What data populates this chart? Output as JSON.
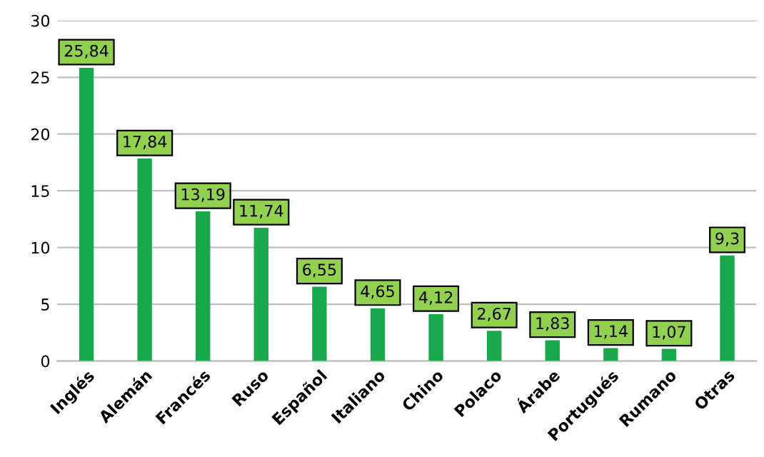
{
  "chart_data": {
    "type": "bar",
    "categories": [
      "Inglés",
      "Alemán",
      "Francés",
      "Ruso",
      "Español",
      "Italiano",
      "Chino",
      "Polaco",
      "Árabe",
      "Portugués",
      "Rumano",
      "Otras"
    ],
    "values": [
      25.84,
      17.84,
      13.19,
      11.74,
      6.55,
      4.65,
      4.12,
      2.67,
      1.83,
      1.14,
      1.07,
      9.3
    ],
    "value_labels": [
      "25,84",
      "17,84",
      "13,19",
      "11,74",
      "6,55",
      "4,65",
      "4,12",
      "2,67",
      "1,83",
      "1,14",
      "1,07",
      "9,3"
    ],
    "color": "#1aa84c",
    "ylim": [
      0,
      30
    ],
    "yticks": [
      0,
      5,
      10,
      15,
      20,
      25,
      30
    ],
    "grid": "y"
  }
}
